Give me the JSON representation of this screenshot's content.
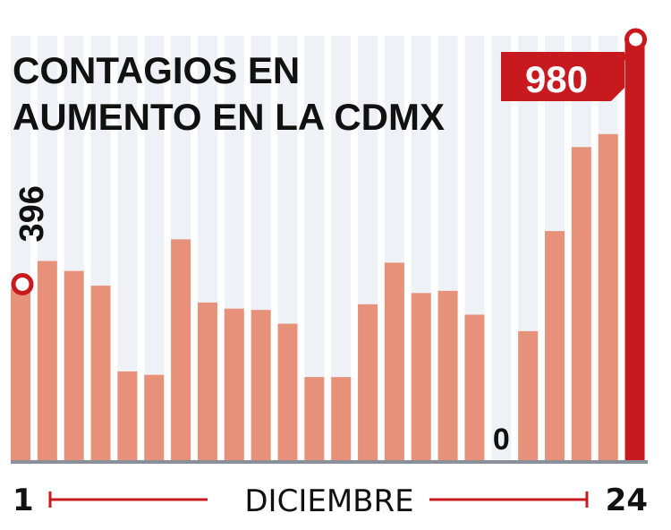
{
  "chart_data": {
    "type": "bar",
    "title_lines": [
      "CONTAGIOS EN",
      "AUMENTO EN LA CDMX"
    ],
    "x_start_label": "1",
    "x_end_label": "24",
    "xlabel": "DICIEMBRE",
    "ylabel": "",
    "ylim": [
      0,
      980
    ],
    "grid": "vertical-bands",
    "categories": [
      "1",
      "2",
      "3",
      "4",
      "5",
      "6",
      "7",
      "8",
      "9",
      "10",
      "11",
      "12",
      "13",
      "14",
      "15",
      "16",
      "17",
      "18",
      "19",
      "20",
      "21",
      "22",
      "23",
      "24"
    ],
    "values": [
      396,
      460,
      437,
      403,
      205,
      197,
      510,
      364,
      350,
      347,
      315,
      192,
      192,
      360,
      456,
      386,
      391,
      336,
      0,
      298,
      529,
      723,
      753,
      980
    ],
    "labels": [
      {
        "index": 0,
        "text": "396"
      },
      {
        "index": 18,
        "text": "0"
      },
      {
        "index": 23,
        "text": "980"
      }
    ],
    "colors": {
      "bar": "#e8917a",
      "highlight": "#c8191e",
      "band": "#eef1f5",
      "baseline": "#8a9099",
      "text": "#111111"
    }
  }
}
